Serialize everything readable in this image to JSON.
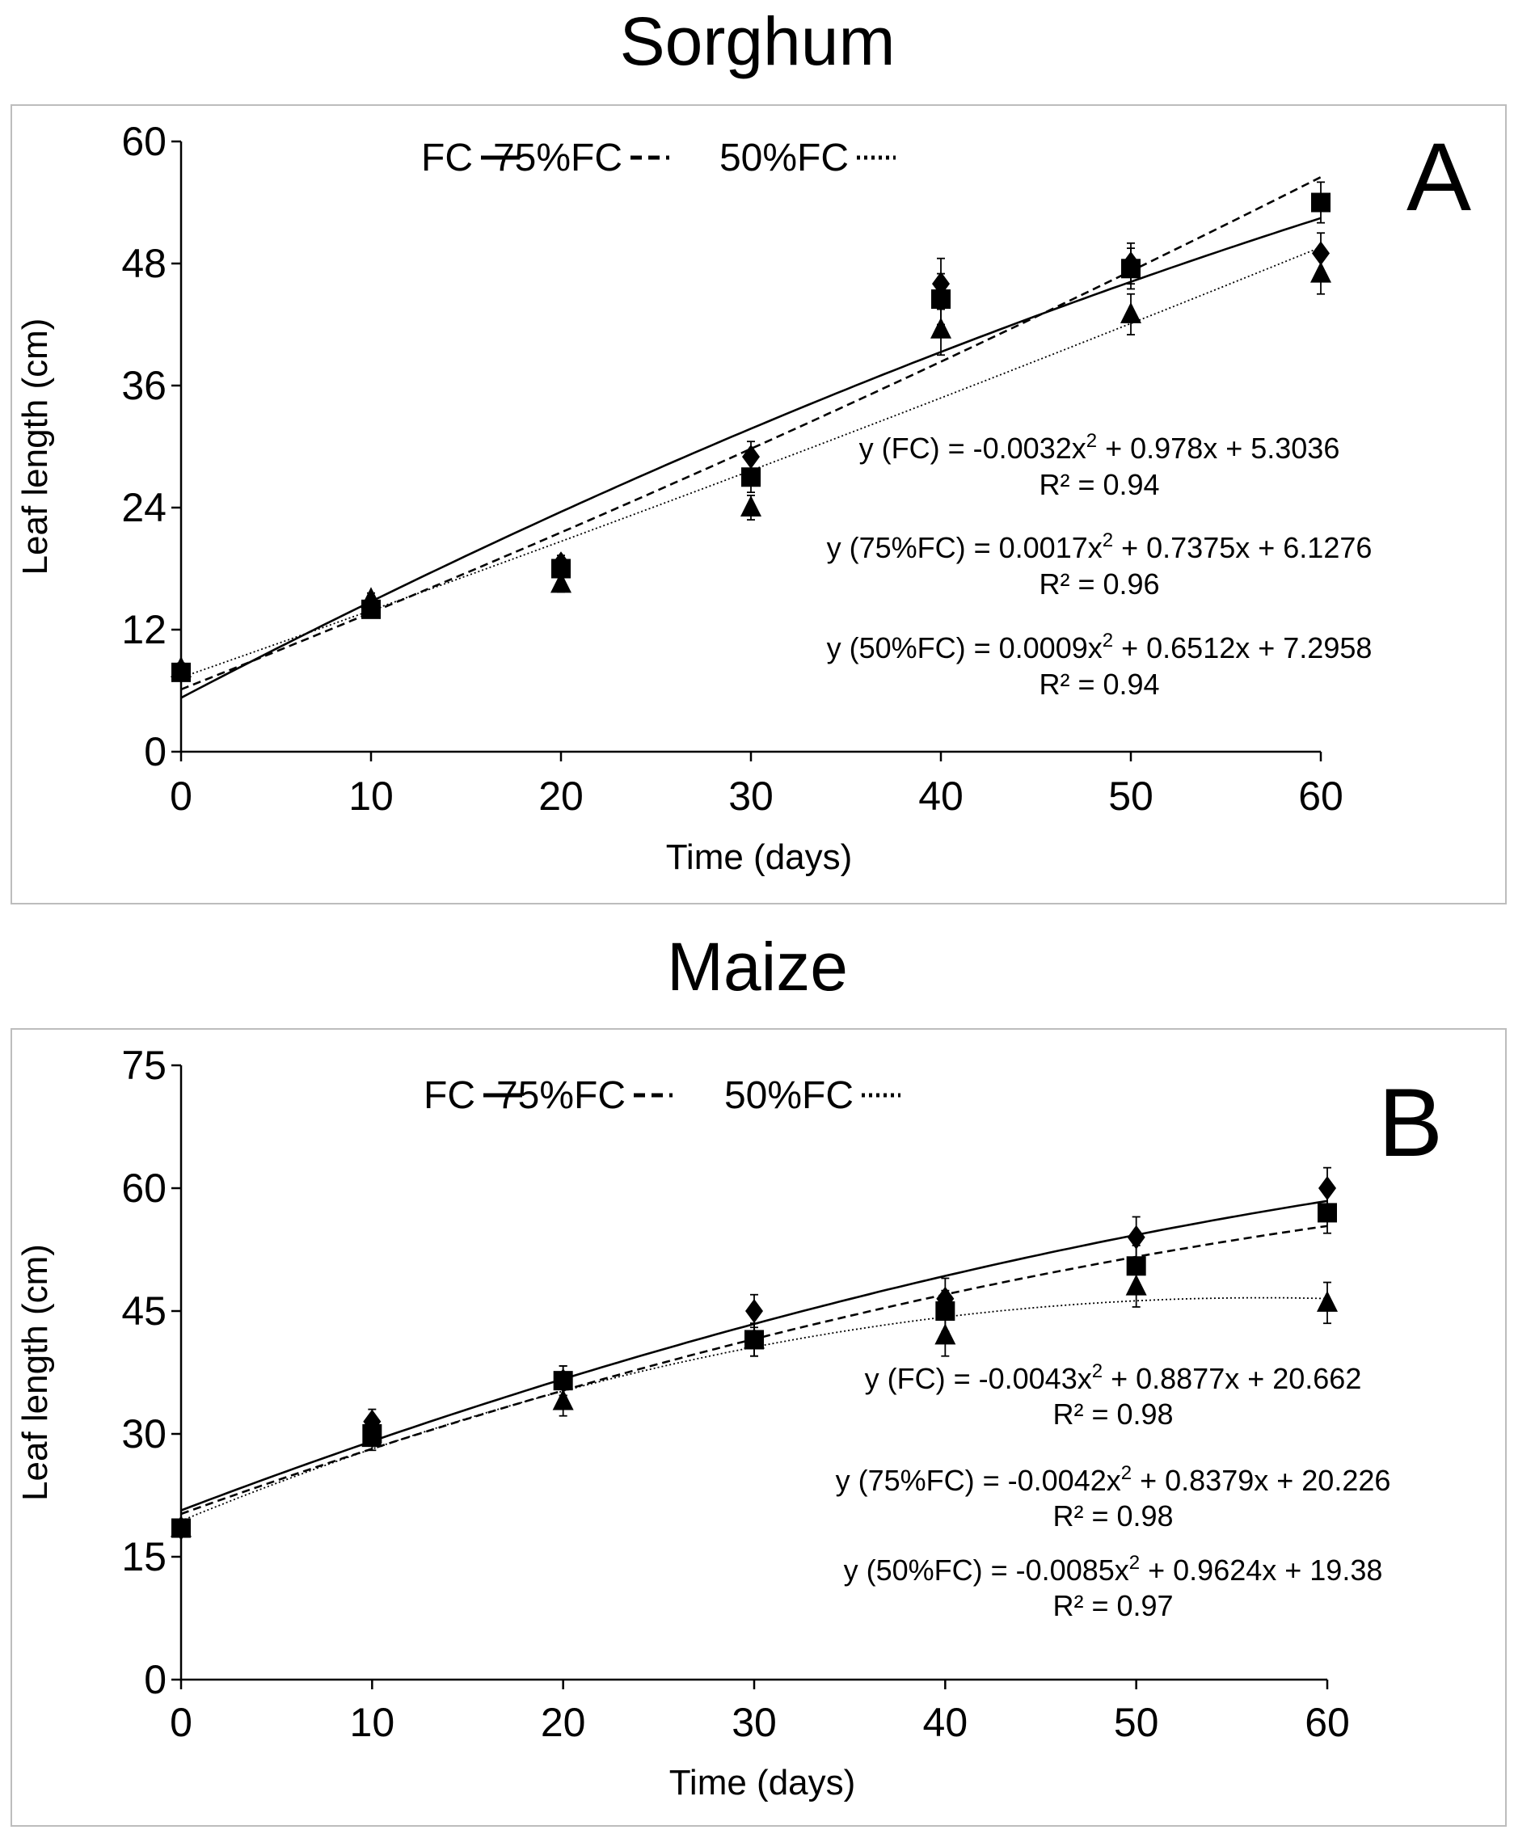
{
  "chart_data": [
    {
      "type": "scatter",
      "title": "Sorghum",
      "panel_label": "A",
      "xlabel": "Time (days)",
      "ylabel": "Leaf length (cm)",
      "xlim": [
        0,
        60
      ],
      "ylim": [
        0,
        60
      ],
      "x_ticks": [
        0,
        10,
        20,
        30,
        40,
        50,
        60
      ],
      "y_ticks": [
        0,
        12,
        24,
        36,
        48,
        60
      ],
      "grid": false,
      "legend": {
        "position": "top-center",
        "items": [
          {
            "label": "FC",
            "style": "solid"
          },
          {
            "label": "75%FC",
            "style": "dashed"
          },
          {
            "label": "50%FC",
            "style": "dotted"
          }
        ]
      },
      "x": [
        0,
        10,
        20,
        30,
        40,
        50,
        60
      ],
      "series": [
        {
          "name": "FC",
          "marker": "diamond",
          "line_style": "solid",
          "values": [
            8.0,
            14.5,
            18.5,
            29.0,
            46.0,
            48.0,
            49.0
          ],
          "errors": [
            0.5,
            0.6,
            0.8,
            1.5,
            2.5,
            2.0,
            2.0
          ],
          "fit": [
            -0.0032,
            0.978,
            5.3036
          ]
        },
        {
          "name": "75%FC",
          "marker": "square",
          "line_style": "dashed",
          "values": [
            7.8,
            14.0,
            18.0,
            27.0,
            44.5,
            47.5,
            54.0
          ],
          "errors": [
            0.5,
            0.6,
            0.8,
            1.5,
            2.5,
            2.0,
            2.0
          ],
          "fit": [
            0.0017,
            0.7375,
            6.1276
          ]
        },
        {
          "name": "50%FC",
          "marker": "triangle",
          "line_style": "dotted",
          "values": [
            8.2,
            15.0,
            16.5,
            24.0,
            41.5,
            43.0,
            47.0
          ],
          "errors": [
            0.5,
            0.6,
            0.8,
            1.2,
            2.5,
            2.0,
            2.0
          ],
          "fit": [
            0.0009,
            0.6512,
            7.2958
          ]
        }
      ],
      "equations": [
        {
          "eq": "y (FC) = -0.0032x",
          "sup": "2",
          "rest": " + 0.978x + 5.3036",
          "r2": "R² = 0.94"
        },
        {
          "eq": "y (75%FC) = 0.0017x",
          "sup": "2",
          "rest": " + 0.7375x + 6.1276",
          "r2": "R² = 0.96"
        },
        {
          "eq": "y (50%FC) = 0.0009x",
          "sup": "2",
          "rest": " + 0.6512x + 7.2958",
          "r2": "R² = 0.94"
        }
      ]
    },
    {
      "type": "scatter",
      "title": "Maize",
      "panel_label": "B",
      "xlabel": "Time (days)",
      "ylabel": "Leaf length (cm)",
      "xlim": [
        0,
        60
      ],
      "ylim": [
        0,
        75
      ],
      "x_ticks": [
        0,
        10,
        20,
        30,
        40,
        50,
        60
      ],
      "y_ticks": [
        0,
        15,
        30,
        45,
        60,
        75
      ],
      "grid": false,
      "legend": {
        "position": "top-center",
        "items": [
          {
            "label": "FC",
            "style": "solid"
          },
          {
            "label": "75%FC",
            "style": "dashed"
          },
          {
            "label": "50%FC",
            "style": "dotted"
          }
        ]
      },
      "x": [
        0,
        10,
        20,
        30,
        40,
        50,
        60
      ],
      "series": [
        {
          "name": "FC",
          "marker": "diamond",
          "line_style": "solid",
          "values": [
            18.5,
            31.5,
            36.5,
            45.0,
            46.5,
            54.0,
            60.0
          ],
          "errors": [
            0.8,
            1.5,
            1.8,
            2.0,
            2.5,
            2.5,
            2.5
          ],
          "fit": [
            -0.0043,
            0.8877,
            20.662
          ]
        },
        {
          "name": "75%FC",
          "marker": "square",
          "line_style": "dashed",
          "values": [
            18.5,
            30.0,
            36.5,
            41.5,
            45.0,
            50.5,
            57.0
          ],
          "errors": [
            0.8,
            1.5,
            1.8,
            2.0,
            2.5,
            2.5,
            2.5
          ],
          "fit": [
            -0.0042,
            0.8379,
            20.226
          ]
        },
        {
          "name": "50%FC",
          "marker": "triangle",
          "line_style": "dotted",
          "values": [
            18.5,
            29.5,
            34.0,
            41.5,
            42.0,
            48.0,
            46.0
          ],
          "errors": [
            0.8,
            1.5,
            1.8,
            2.0,
            2.5,
            2.5,
            2.5
          ],
          "fit": [
            -0.0085,
            0.9624,
            19.38
          ]
        }
      ],
      "equations": [
        {
          "eq": "y (FC) = -0.0043x",
          "sup": "2",
          "rest": " + 0.8877x + 20.662",
          "r2": "R² = 0.98"
        },
        {
          "eq": "y (75%FC) = -0.0042x",
          "sup": "2",
          "rest": " + 0.8379x + 20.226",
          "r2": "R² = 0.98"
        },
        {
          "eq": "y (50%FC) = -0.0085x",
          "sup": "2",
          "rest": " + 0.9624x + 19.38",
          "r2": "R² = 0.97"
        }
      ]
    }
  ]
}
